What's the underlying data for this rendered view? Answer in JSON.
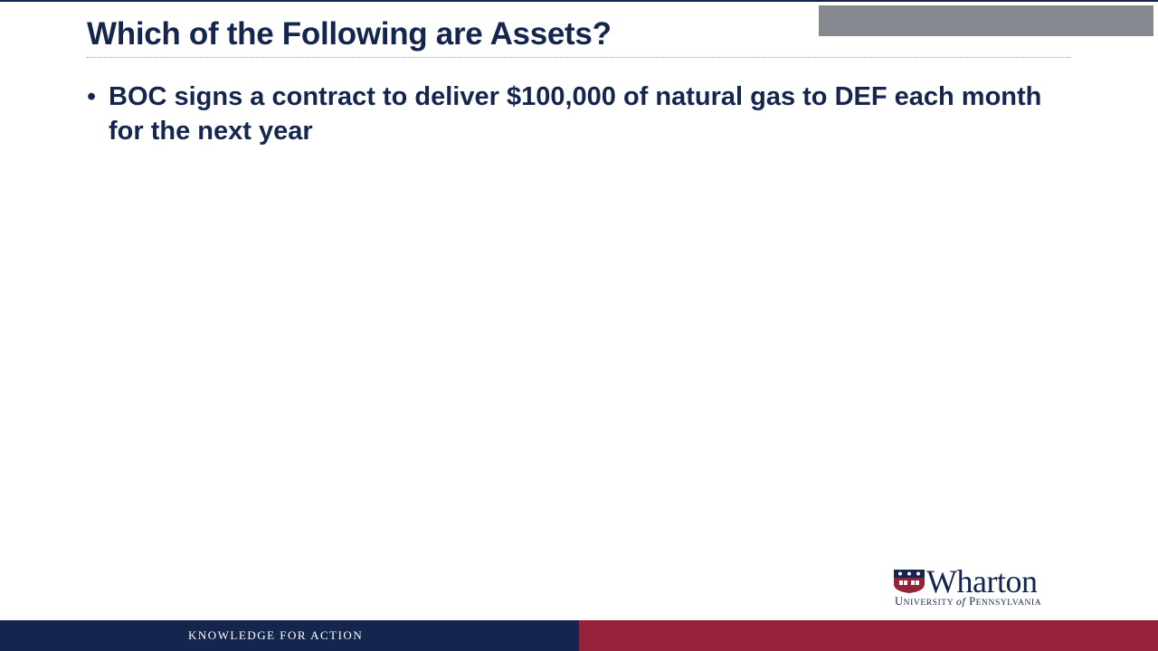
{
  "slide": {
    "title": "Which of the Following are Assets?",
    "bullets": [
      {
        "marker": "•",
        "text": "BOC signs a contract to deliver $100,000 of natural gas to DEF each month for the next year"
      }
    ]
  },
  "logo": {
    "name": "Wharton",
    "subtitle": "University of Pennsylvania",
    "icon": "penn-shield-icon"
  },
  "footer": {
    "tagline": "KNOWLEDGE FOR ACTION",
    "colors": {
      "left": "#14264e",
      "right": "#96223a"
    }
  },
  "colors": {
    "title": "#14264e",
    "accent_gray": "#85888f"
  }
}
